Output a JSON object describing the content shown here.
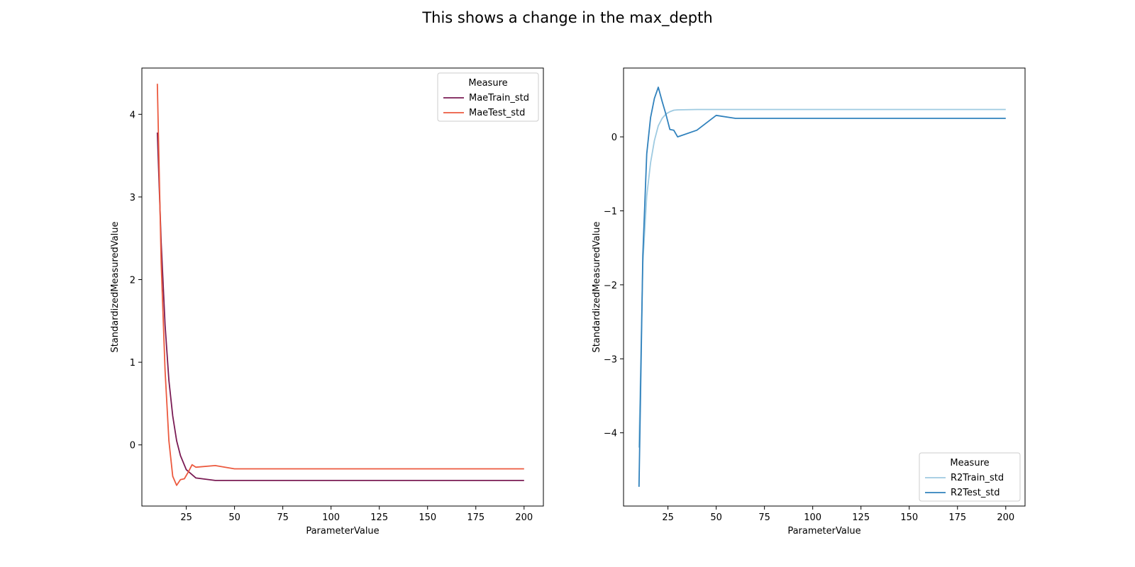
{
  "figure": {
    "suptitle": "This shows a change in the max_depth"
  },
  "chart_data": [
    {
      "type": "line",
      "xlabel": "ParameterValue",
      "ylabel": "StandardizedMeasuredValue",
      "xlim": [
        2,
        210
      ],
      "ylim": [
        -0.74,
        4.56
      ],
      "xticks": [
        25,
        50,
        75,
        100,
        125,
        150,
        175,
        200
      ],
      "yticks": [
        0,
        1,
        2,
        3,
        4
      ],
      "grid": false,
      "legend": {
        "title": "Measure",
        "position": "top-right"
      },
      "series": [
        {
          "name": "MaeTrain_std",
          "color": "#7a1b54",
          "x": [
            10,
            12,
            14,
            16,
            18,
            20,
            22,
            25,
            30,
            40,
            50,
            60,
            80,
            100,
            125,
            150,
            175,
            200
          ],
          "y": [
            3.78,
            2.45,
            1.45,
            0.78,
            0.35,
            0.05,
            -0.13,
            -0.3,
            -0.4,
            -0.43,
            -0.43,
            -0.43,
            -0.43,
            -0.43,
            -0.43,
            -0.43,
            -0.43,
            -0.43
          ]
        },
        {
          "name": "MaeTest_std",
          "color": "#ec5a3f",
          "x": [
            10,
            12,
            14,
            16,
            18,
            20,
            22,
            24,
            26,
            28,
            30,
            40,
            50,
            60,
            80,
            100,
            125,
            150,
            175,
            200
          ],
          "y": [
            4.37,
            2.2,
            0.9,
            0.05,
            -0.38,
            -0.49,
            -0.42,
            -0.41,
            -0.33,
            -0.24,
            -0.27,
            -0.25,
            -0.29,
            -0.29,
            -0.29,
            -0.29,
            -0.29,
            -0.29,
            -0.29,
            -0.29
          ]
        }
      ]
    },
    {
      "type": "line",
      "xlabel": "ParameterValue",
      "ylabel": "StandardizedMeasuredValue",
      "xlim": [
        2,
        210
      ],
      "ylim": [
        -4.99,
        0.93
      ],
      "xticks": [
        25,
        50,
        75,
        100,
        125,
        150,
        175,
        200
      ],
      "yticks": [
        -4,
        -3,
        -2,
        -1,
        0
      ],
      "grid": false,
      "legend": {
        "title": "Measure",
        "position": "bottom-right"
      },
      "series": [
        {
          "name": "R2Train_std",
          "color": "#9ecae1",
          "x": [
            10,
            12,
            14,
            16,
            18,
            20,
            22,
            24,
            26,
            28,
            30,
            40,
            50,
            60,
            80,
            100,
            125,
            150,
            175,
            200
          ],
          "y": [
            -4.2,
            -1.7,
            -0.8,
            -0.35,
            -0.05,
            0.15,
            0.25,
            0.31,
            0.34,
            0.36,
            0.365,
            0.37,
            0.37,
            0.37,
            0.37,
            0.37,
            0.37,
            0.37,
            0.37,
            0.37
          ]
        },
        {
          "name": "R2Test_std",
          "color": "#3182bd",
          "x": [
            10,
            12,
            14,
            16,
            18,
            20,
            22,
            24,
            26,
            28,
            30,
            40,
            50,
            60,
            80,
            100,
            125,
            150,
            175,
            200
          ],
          "y": [
            -4.73,
            -1.6,
            -0.23,
            0.26,
            0.52,
            0.67,
            0.48,
            0.3,
            0.1,
            0.09,
            0.0,
            0.09,
            0.29,
            0.25,
            0.25,
            0.25,
            0.25,
            0.25,
            0.25,
            0.25
          ]
        }
      ]
    }
  ]
}
